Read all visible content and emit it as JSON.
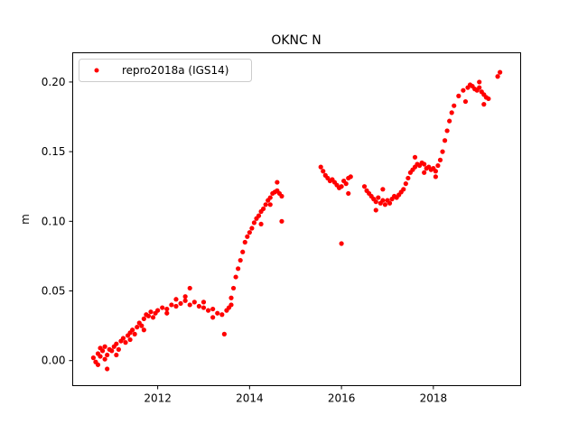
{
  "chart_data": {
    "type": "scatter",
    "title": "OKNC N",
    "xlabel": "",
    "ylabel": "m",
    "xlim": [
      2010.15,
      2019.9
    ],
    "ylim": [
      -0.018,
      0.221
    ],
    "xticks": [
      2012,
      2014,
      2016,
      2018
    ],
    "xtick_labels": [
      "2012",
      "2014",
      "2016",
      "2018"
    ],
    "yticks": [
      0.0,
      0.05,
      0.1,
      0.15,
      0.2
    ],
    "ytick_labels": [
      "0.00",
      "0.05",
      "0.10",
      "0.15",
      "0.20"
    ],
    "grid": false,
    "legend_position": "top-left",
    "series": [
      {
        "name": "repro2018a (IGS14)",
        "color": "#ff0000",
        "marker": "circle",
        "x": [
          2010.6,
          2010.65,
          2010.7,
          2010.75,
          2010.8,
          2010.85,
          2010.9,
          2010.95,
          2011.0,
          2011.05,
          2011.1,
          2011.15,
          2011.2,
          2011.25,
          2011.3,
          2011.35,
          2011.4,
          2011.45,
          2011.5,
          2011.55,
          2011.6,
          2011.65,
          2011.7,
          2011.75,
          2011.8,
          2011.85,
          2011.9,
          2011.95,
          2012.0,
          2012.1,
          2012.2,
          2012.3,
          2012.4,
          2012.5,
          2012.6,
          2012.7,
          2012.8,
          2012.9,
          2013.0,
          2013.1,
          2013.2,
          2013.3,
          2013.4,
          2013.45,
          2013.5,
          2013.55,
          2013.6,
          2013.65,
          2013.7,
          2013.75,
          2013.8,
          2013.85,
          2013.9,
          2013.95,
          2014.0,
          2014.05,
          2014.1,
          2014.15,
          2014.2,
          2014.25,
          2014.3,
          2014.35,
          2014.4,
          2014.45,
          2014.5,
          2014.55,
          2014.6,
          2014.65,
          2014.7,
          2014.7,
          2015.55,
          2015.6,
          2015.65,
          2015.7,
          2015.75,
          2015.8,
          2015.85,
          2015.9,
          2015.95,
          2016.0,
          2016.05,
          2016.1,
          2016.15,
          2016.2,
          2016.5,
          2016.55,
          2016.6,
          2016.65,
          2016.7,
          2016.75,
          2016.8,
          2016.85,
          2016.9,
          2016.95,
          2017.0,
          2017.05,
          2017.1,
          2017.15,
          2017.2,
          2017.25,
          2017.3,
          2017.35,
          2017.4,
          2017.45,
          2017.5,
          2017.55,
          2017.6,
          2017.65,
          2017.7,
          2017.75,
          2017.8,
          2017.85,
          2017.9,
          2017.95,
          2018.0,
          2018.05,
          2018.1,
          2018.15,
          2018.2,
          2018.25,
          2018.3,
          2018.35,
          2018.4,
          2018.45,
          2018.55,
          2018.65,
          2018.75,
          2018.8,
          2018.85,
          2018.9,
          2018.95,
          2019.0,
          2019.05,
          2019.1,
          2019.15,
          2019.2,
          2019.4,
          2019.45,
          2010.7,
          2010.75,
          2010.85,
          2010.9,
          2011.1,
          2011.4,
          2011.7,
          2012.2,
          2012.4,
          2012.6,
          2012.7,
          2013.0,
          2013.2,
          2013.6,
          2014.25,
          2014.45,
          2014.6,
          2016.15,
          2016.75,
          2016.9,
          2017.6,
          2017.8,
          2018.05,
          2018.7,
          2019.0,
          2019.1
        ],
        "y": [
          0.002,
          -0.001,
          0.005,
          0.003,
          0.007,
          0.001,
          0.004,
          0.008,
          0.007,
          0.01,
          0.012,
          0.008,
          0.014,
          0.016,
          0.013,
          0.018,
          0.02,
          0.022,
          0.019,
          0.024,
          0.027,
          0.025,
          0.03,
          0.033,
          0.032,
          0.035,
          0.031,
          0.034,
          0.036,
          0.038,
          0.037,
          0.04,
          0.039,
          0.041,
          0.043,
          0.04,
          0.042,
          0.039,
          0.038,
          0.036,
          0.037,
          0.034,
          0.033,
          0.019,
          0.036,
          0.038,
          0.045,
          0.052,
          0.06,
          0.066,
          0.072,
          0.078,
          0.085,
          0.089,
          0.092,
          0.095,
          0.099,
          0.102,
          0.104,
          0.107,
          0.109,
          0.112,
          0.115,
          0.117,
          0.12,
          0.121,
          0.122,
          0.12,
          0.118,
          0.1,
          0.139,
          0.136,
          0.133,
          0.131,
          0.129,
          0.13,
          0.128,
          0.126,
          0.124,
          0.125,
          0.129,
          0.127,
          0.131,
          0.132,
          0.125,
          0.122,
          0.12,
          0.118,
          0.116,
          0.114,
          0.117,
          0.113,
          0.115,
          0.112,
          0.115,
          0.113,
          0.116,
          0.118,
          0.117,
          0.119,
          0.121,
          0.123,
          0.127,
          0.131,
          0.135,
          0.137,
          0.139,
          0.141,
          0.14,
          0.142,
          0.141,
          0.138,
          0.139,
          0.137,
          0.138,
          0.136,
          0.14,
          0.144,
          0.15,
          0.158,
          0.165,
          0.172,
          0.178,
          0.183,
          0.19,
          0.194,
          0.196,
          0.198,
          0.197,
          0.195,
          0.194,
          0.196,
          0.193,
          0.191,
          0.189,
          0.188,
          0.204,
          0.207,
          -0.003,
          0.009,
          0.01,
          -0.006,
          0.004,
          0.015,
          0.022,
          0.034,
          0.044,
          0.046,
          0.052,
          0.042,
          0.031,
          0.04,
          0.098,
          0.112,
          0.128,
          0.12,
          0.108,
          0.123,
          0.146,
          0.135,
          0.132,
          0.186,
          0.2,
          0.184
        ]
      },
      {
        "name": "",
        "color": "#ff0000",
        "x": [
          2016.0
        ],
        "y": [
          0.084
        ]
      }
    ]
  }
}
